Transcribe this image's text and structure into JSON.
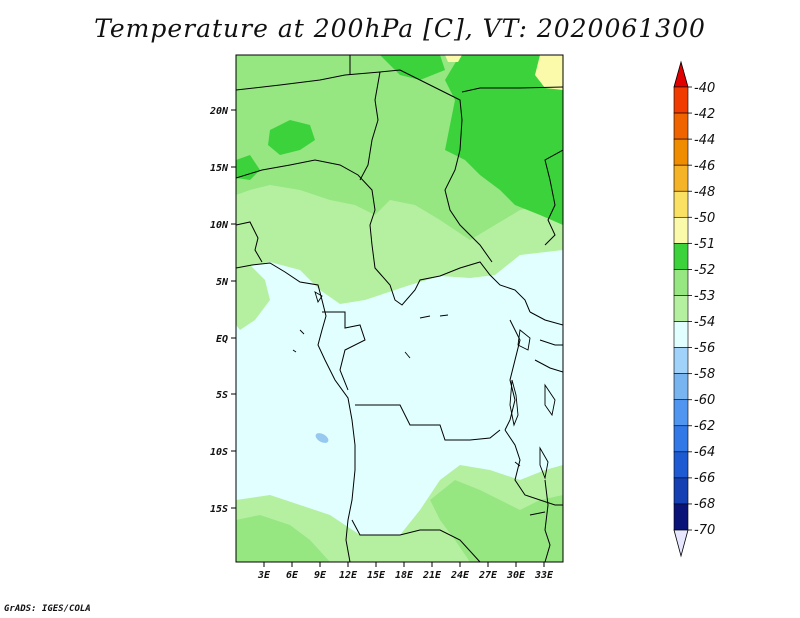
{
  "map": {
    "title": "Temperature at 200hPa [C], VT: 2020061300",
    "credit": "GrADS: IGES/COLA",
    "lat_labels": [
      "20N",
      "15N",
      "10N",
      "5N",
      "EQ",
      "5S",
      "10S",
      "15S"
    ],
    "lon_labels": [
      "3E",
      "6E",
      "9E",
      "12E",
      "15E",
      "18E",
      "21E",
      "24E",
      "27E",
      "30E",
      "33E"
    ],
    "region": {
      "lon_range": [
        0,
        35
      ],
      "lat_range": [
        -20,
        24
      ]
    },
    "colors": {
      "lightcyan": "#e1ffff",
      "palegreen": "#b4f0a0",
      "green53": "#96e682",
      "green52": "#3cd23c",
      "yellow": "#fafaaa",
      "bluespot": "#96c8f0"
    }
  },
  "colorbar": {
    "levels": [
      "-40",
      "-42",
      "-44",
      "-46",
      "-48",
      "-50",
      "-51",
      "-52",
      "-53",
      "-54",
      "-56",
      "-58",
      "-60",
      "-62",
      "-64",
      "-66",
      "-68",
      "-70"
    ],
    "colors": [
      "#e00000",
      "#f03c00",
      "#f06400",
      "#f08c00",
      "#f5b428",
      "#fae164",
      "#fafaaa",
      "#3cd23c",
      "#96e682",
      "#b4f0a0",
      "#e1ffff",
      "#a0d2fa",
      "#78b4f0",
      "#5096f0",
      "#3278e6",
      "#1e5ad2",
      "#1440b4",
      "#0a1478",
      "#e6e6ff"
    ],
    "top_arrow_color": "#e00000",
    "bottom_arrow_color": "#e6e6ff"
  }
}
